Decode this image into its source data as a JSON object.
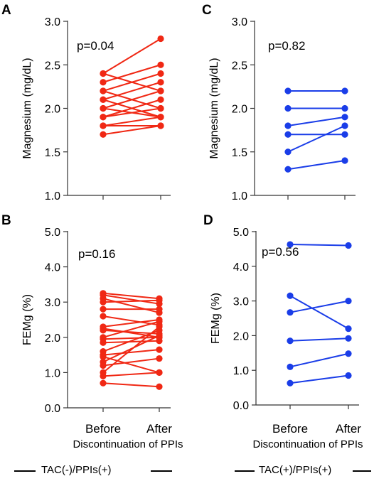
{
  "chart_data": [
    {
      "panel": "A",
      "type": "line",
      "annotation": "p=0.04",
      "ylabel": "Magnesium (mg/dL)",
      "ylim": [
        1.0,
        3.0
      ],
      "yticks": [
        "1.0",
        "1.5",
        "2.0",
        "2.5",
        "3.0"
      ],
      "ytick_values": [
        1.0,
        1.5,
        2.0,
        2.5,
        3.0
      ],
      "categories": [],
      "color": "#f02814",
      "pairs": [
        [
          2.4,
          2.8
        ],
        [
          2.3,
          2.5
        ],
        [
          2.2,
          2.4
        ],
        [
          2.4,
          2.2
        ],
        [
          2.1,
          2.3
        ],
        [
          2.2,
          2.0
        ],
        [
          2.0,
          2.2
        ],
        [
          1.9,
          2.1
        ],
        [
          2.1,
          1.9
        ],
        [
          1.9,
          2.0
        ],
        [
          2.0,
          1.9
        ],
        [
          1.8,
          1.9
        ],
        [
          1.8,
          1.8
        ],
        [
          1.7,
          1.8
        ]
      ]
    },
    {
      "panel": "B",
      "type": "line",
      "annotation": "p=0.16",
      "ylabel": "FEMg (%)",
      "ylim": [
        0.0,
        5.0
      ],
      "yticks": [
        "0.0",
        "1.0",
        "2.0",
        "3.0",
        "4.0",
        "5.0"
      ],
      "ytick_values": [
        0,
        1,
        2,
        3,
        4,
        5
      ],
      "categories": [
        "Before",
        "After"
      ],
      "xlabel": "Discontinuation of PPIs",
      "color": "#f02814",
      "pairs": [
        [
          3.25,
          3.1
        ],
        [
          3.2,
          2.95
        ],
        [
          3.1,
          2.7
        ],
        [
          3.0,
          3.05
        ],
        [
          2.8,
          2.8
        ],
        [
          2.6,
          2.35
        ],
        [
          2.3,
          2.5
        ],
        [
          2.2,
          2.1
        ],
        [
          2.0,
          2.45
        ],
        [
          1.95,
          2.0
        ],
        [
          1.85,
          1.9
        ],
        [
          1.6,
          2.2
        ],
        [
          1.5,
          1.65
        ],
        [
          1.3,
          2.05
        ],
        [
          1.2,
          1.4
        ],
        [
          1.0,
          2.3
        ],
        [
          0.9,
          1.0
        ],
        [
          0.7,
          0.6
        ],
        [
          2.25,
          2.0
        ],
        [
          1.45,
          1.0
        ]
      ]
    },
    {
      "panel": "C",
      "type": "line",
      "annotation": "p=0.82",
      "ylabel": "Magnesium (mg/dL)",
      "ylim": [
        1.0,
        3.0
      ],
      "yticks": [
        "1.0",
        "1.5",
        "2.0",
        "2.5",
        "3.0"
      ],
      "ytick_values": [
        1.0,
        1.5,
        2.0,
        2.5,
        3.0
      ],
      "categories": [],
      "color": "#1a3de8",
      "pairs": [
        [
          2.2,
          2.2
        ],
        [
          2.0,
          2.0
        ],
        [
          1.8,
          1.9
        ],
        [
          1.7,
          1.7
        ],
        [
          1.5,
          1.8
        ],
        [
          1.3,
          1.4
        ]
      ]
    },
    {
      "panel": "D",
      "type": "line",
      "annotation": "p=0.56",
      "ylabel": "FEMg (%)",
      "ylim": [
        0.0,
        5.0
      ],
      "yticks": [
        "0.0",
        "1.0",
        "2.0",
        "3.0",
        "4.0",
        "5.0"
      ],
      "ytick_values": [
        0,
        1,
        2,
        3,
        4,
        5
      ],
      "categories": [
        "Before",
        "After"
      ],
      "xlabel": "Discontinuation of PPIs",
      "color": "#1a3de8",
      "pairs": [
        [
          4.63,
          4.6
        ],
        [
          3.15,
          2.2
        ],
        [
          2.67,
          3.0
        ],
        [
          1.85,
          1.92
        ],
        [
          1.1,
          1.48
        ],
        [
          0.63,
          0.85
        ]
      ]
    }
  ],
  "footer": {
    "left_label": "TAC(-)/PPIs(+)",
    "right_label": "TAC(+)/PPIs(+)"
  }
}
